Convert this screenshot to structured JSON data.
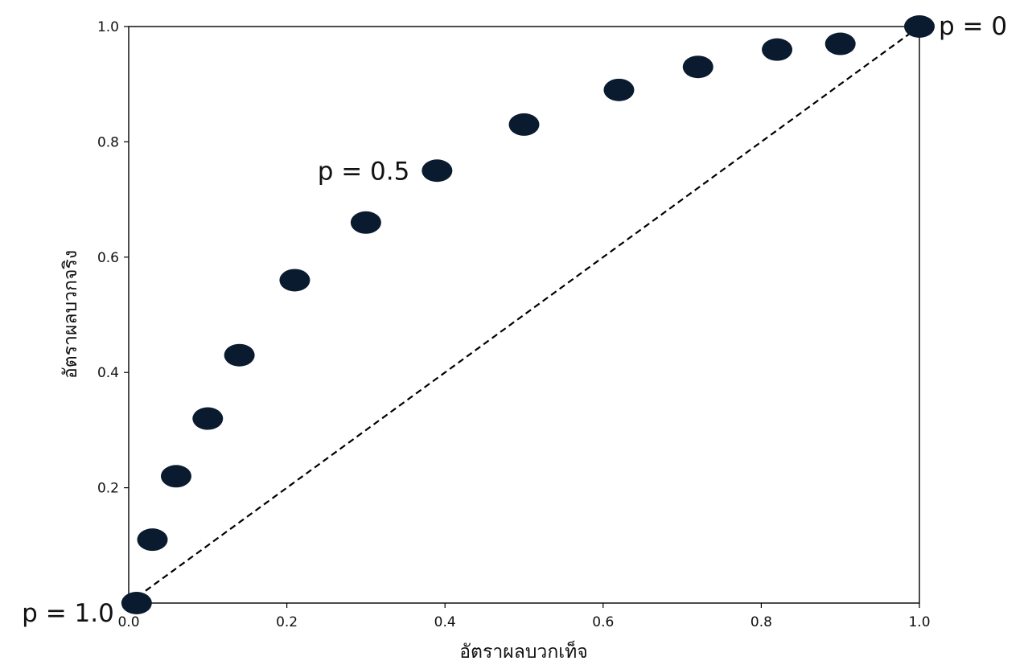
{
  "chart_data": {
    "type": "scatter",
    "title": "",
    "xlabel": "อัตราผลบวกเท็จ",
    "ylabel": "อัตราผลบวกจริง",
    "xlim": [
      0.0,
      1.0
    ],
    "ylim": [
      0.0,
      1.0
    ],
    "xticks": [
      "0.0",
      "0.2",
      "0.4",
      "0.6",
      "0.8",
      "1.0"
    ],
    "yticks": [
      "0.2",
      "0.4",
      "0.6",
      "0.8",
      "1.0"
    ],
    "grid": false,
    "legend": "none",
    "point_color": "#0a1a2f",
    "series": [
      {
        "x": [
          0.01,
          0.03,
          0.06,
          0.1,
          0.14,
          0.21,
          0.3,
          0.39,
          0.5,
          0.62,
          0.72,
          0.82,
          0.9,
          1.0
        ],
        "y": [
          0.0,
          0.11,
          0.22,
          0.32,
          0.43,
          0.56,
          0.66,
          0.75,
          0.83,
          0.89,
          0.93,
          0.96,
          0.97,
          1.0
        ]
      }
    ],
    "reference_line": {
      "x": [
        0.0,
        1.0
      ],
      "y": [
        0.0,
        1.0
      ],
      "style": "dashed",
      "color": "#000000"
    },
    "annotations": [
      {
        "text": "p = 1.0",
        "x": 0.01,
        "y": 0.0
      },
      {
        "text": "p = 0.5",
        "x": 0.39,
        "y": 0.75
      },
      {
        "text": "p = 0",
        "x": 1.0,
        "y": 1.0
      }
    ]
  }
}
